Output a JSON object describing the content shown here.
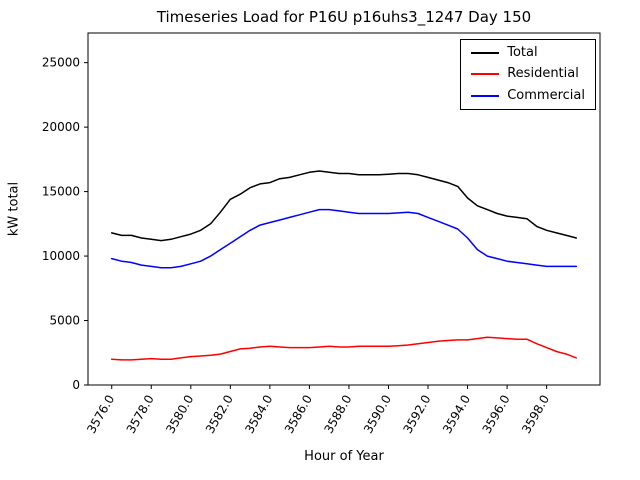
{
  "chart_data": {
    "type": "line",
    "title": "Timeseries Load for P16U p16uhs3_1247  Day 150",
    "xlabel": "Hour of Year",
    "ylabel": "kW total",
    "grid": false,
    "legend_position": "upper right",
    "xlim": [
      3574.8,
      3600.7
    ],
    "ylim": [
      0,
      27300
    ],
    "xticks": [
      3576,
      3578,
      3580,
      3582,
      3584,
      3586,
      3588,
      3590,
      3592,
      3594,
      3596,
      3598
    ],
    "xtick_labels": [
      "3576.0",
      "3578.0",
      "3580.0",
      "3582.0",
      "3584.0",
      "3586.0",
      "3588.0",
      "3590.0",
      "3592.0",
      "3594.0",
      "3596.0",
      "3598.0"
    ],
    "yticks": [
      0,
      5000,
      10000,
      15000,
      20000,
      25000
    ],
    "ytick_labels": [
      "0",
      "5000",
      "10000",
      "15000",
      "20000",
      "25000"
    ],
    "x": [
      3576.0,
      3576.5,
      3577.0,
      3577.5,
      3578.0,
      3578.5,
      3579.0,
      3579.5,
      3580.0,
      3580.5,
      3581.0,
      3581.5,
      3582.0,
      3582.5,
      3583.0,
      3583.5,
      3584.0,
      3584.5,
      3585.0,
      3585.5,
      3586.0,
      3586.5,
      3587.0,
      3587.5,
      3588.0,
      3588.5,
      3589.0,
      3589.5,
      3590.0,
      3590.5,
      3591.0,
      3591.5,
      3592.0,
      3592.5,
      3593.0,
      3593.5,
      3594.0,
      3594.5,
      3595.0,
      3595.5,
      3596.0,
      3596.5,
      3597.0,
      3597.5,
      3598.0,
      3598.5,
      3599.0,
      3599.5
    ],
    "series": [
      {
        "name": "Total",
        "color": "#000000",
        "values": [
          11800,
          11600,
          11600,
          11400,
          11300,
          11200,
          11300,
          11500,
          11700,
          12000,
          12500,
          13400,
          14400,
          14800,
          15300,
          15600,
          15700,
          16000,
          16100,
          16300,
          16500,
          16600,
          16500,
          16400,
          16400,
          16300,
          16300,
          16300,
          16350,
          16400,
          16400,
          16300,
          16100,
          15900,
          15700,
          15400,
          14500,
          13900,
          13600,
          13300,
          13100,
          13000,
          12900,
          12300,
          12000,
          11800,
          11600,
          11400
        ]
      },
      {
        "name": "Residential",
        "color": "#ff0000",
        "values": [
          2000,
          1950,
          1950,
          2000,
          2050,
          2000,
          2000,
          2100,
          2200,
          2250,
          2300,
          2400,
          2600,
          2800,
          2850,
          2950,
          3000,
          2950,
          2900,
          2900,
          2900,
          2950,
          3000,
          2950,
          2950,
          3000,
          3000,
          3000,
          3000,
          3050,
          3100,
          3200,
          3300,
          3400,
          3450,
          3500,
          3500,
          3600,
          3700,
          3650,
          3600,
          3550,
          3550,
          3200,
          2900,
          2600,
          2400,
          2100
        ]
      },
      {
        "name": "Commercial",
        "color": "#0000ff",
        "values": [
          9800,
          9600,
          9500,
          9300,
          9200,
          9100,
          9100,
          9200,
          9400,
          9600,
          10000,
          10500,
          11000,
          11500,
          12000,
          12400,
          12600,
          12800,
          13000,
          13200,
          13400,
          13600,
          13600,
          13500,
          13400,
          13300,
          13300,
          13300,
          13300,
          13350,
          13400,
          13300,
          13000,
          12700,
          12400,
          12100,
          11400,
          10500,
          10000,
          9800,
          9600,
          9500,
          9400,
          9300,
          9200,
          9200,
          9200,
          9200
        ]
      }
    ]
  }
}
